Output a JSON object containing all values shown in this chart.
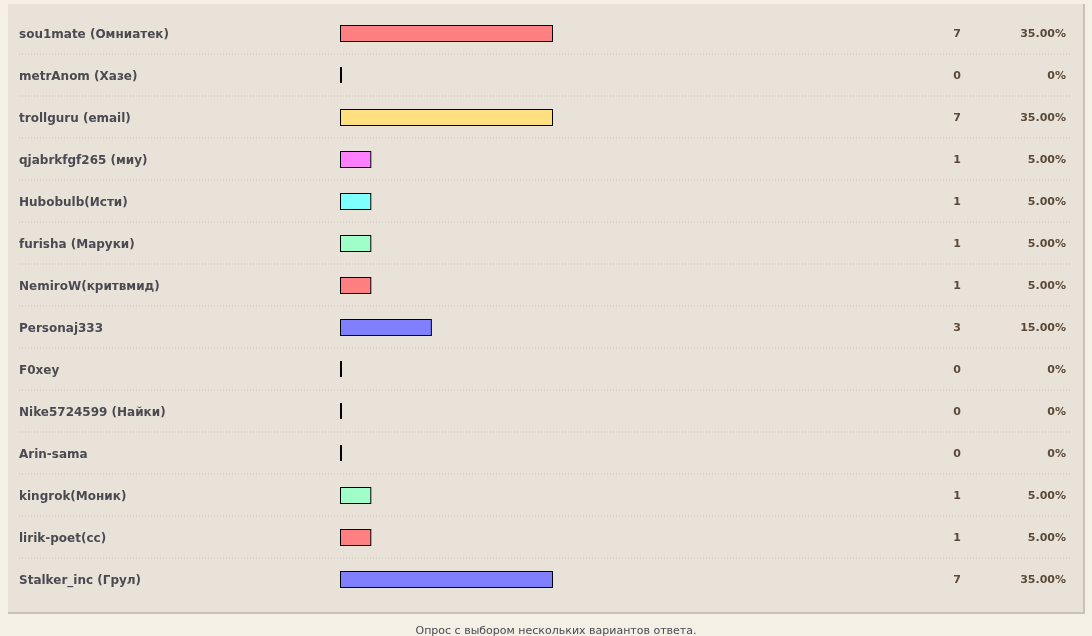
{
  "chart_data": {
    "type": "bar",
    "orientation": "horizontal",
    "categories": [
      "sou1mate (Омниатек)",
      "metrAnom (Хазе)",
      "trollguru (email)",
      "qjabrkfgf265 (миу)",
      "Hubobulb(Исти)",
      "furisha (Маруки)",
      "NemiroW(критвмид)",
      "Personaj333",
      "F0xey",
      "Nike5724599 (Найки)",
      "Arin-sama",
      "kingrok(Моник)",
      "lirik-poet(cc)",
      "Stalker_inc (Грул)"
    ],
    "values": [
      35,
      0,
      35,
      5,
      5,
      5,
      5,
      15,
      0,
      0,
      0,
      5,
      5,
      35
    ],
    "colors": [
      "#ff8080",
      "#000000",
      "#ffe080",
      "#ff80ff",
      "#80ffff",
      "#a0ffc8",
      "#ff8080",
      "#8080ff",
      "#000000",
      "#000000",
      "#000000",
      "#a0ffc8",
      "#ff8080",
      "#8080ff"
    ],
    "value_labels": [
      "35.00%",
      "0%",
      "35.00%",
      "5.00%",
      "5.00%",
      "5.00%",
      "5.00%",
      "15.00%",
      "0%",
      "0%",
      "0%",
      "5.00%",
      "5.00%",
      "35.00%"
    ],
    "annotations": [
      "7",
      "0",
      "7",
      "1",
      "1",
      "1",
      "1",
      "3",
      "0",
      "0",
      "0",
      "1",
      "1",
      "7",
      "Опрос с выбором нескольких вариантов ответа."
    ]
  }
}
